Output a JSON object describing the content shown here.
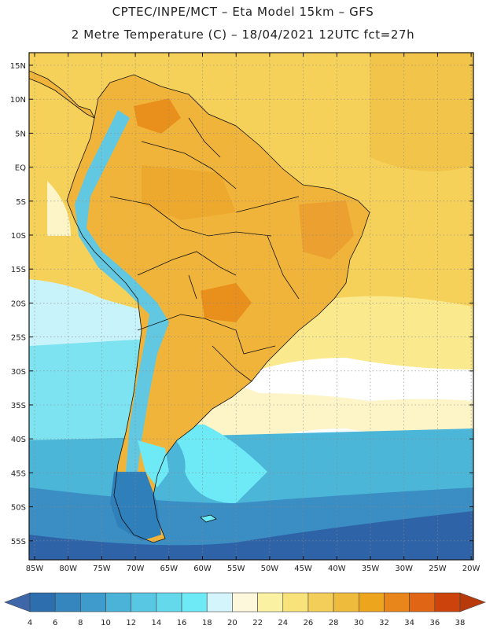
{
  "header": {
    "line1": "CPTEC/INPE/MCT –  Eta Model 15km – GFS",
    "line2": "2 Metre Temperature (C) – 18/04/2021 12UTC fct=27h"
  },
  "map": {
    "lat_labels": [
      "15N",
      "10N",
      "5N",
      "EQ",
      "5S",
      "10S",
      "15S",
      "20S",
      "25S",
      "30S",
      "35S",
      "40S",
      "45S",
      "50S",
      "55S"
    ],
    "lon_labels": [
      "85W",
      "80W",
      "75W",
      "70W",
      "65W",
      "60W",
      "55W",
      "50W",
      "45W",
      "40W",
      "35W",
      "30W",
      "25W",
      "20W"
    ],
    "colors": {
      "ocean_tropical": "#f6d15a",
      "ocean_warm": "#fbe98e",
      "ocean_mid": "#c9f3fb",
      "ocean_cool": "#7ee3f0",
      "ocean_cold": "#4cb6d9",
      "ocean_colder": "#3b8ec4",
      "ocean_polar": "#2f63a8",
      "land_warm": "#f1b43a",
      "land_hot": "#e98f1c",
      "andes_cool": "#62c8e2",
      "patagonia_cold": "#2f7fbb",
      "border": "#111111",
      "grid": "#888888"
    }
  },
  "colorbar": {
    "labels": [
      "4",
      "6",
      "8",
      "10",
      "12",
      "14",
      "16",
      "18",
      "20",
      "22",
      "24",
      "26",
      "28",
      "30",
      "32",
      "34",
      "36",
      "38"
    ],
    "colors": [
      "#2d6fae",
      "#3585be",
      "#3f9bcb",
      "#4cb3d8",
      "#58c7e3",
      "#64d9ec",
      "#6eeaf6",
      "#d3f5fb",
      "#fdf7dc",
      "#fbf1a2",
      "#f8e27a",
      "#f3cf59",
      "#efbb3c",
      "#eda51e",
      "#e8861c",
      "#e06515",
      "#cc440c"
    ],
    "left_arrow_color": "#3d67a8",
    "right_arrow_color": "#b83a0a"
  }
}
